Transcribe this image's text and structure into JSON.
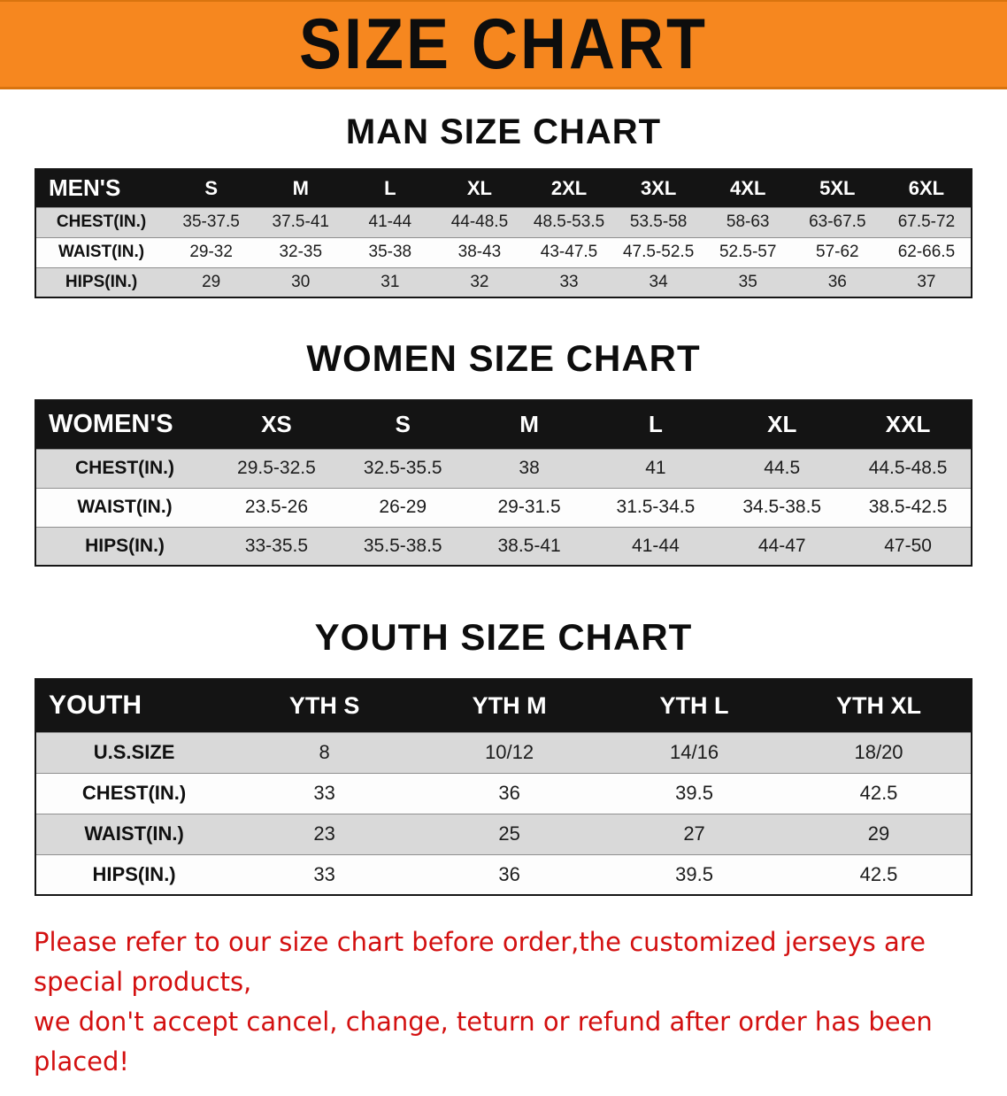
{
  "banner": {
    "title": "SIZE CHART"
  },
  "colors": {
    "banner-bg": "#f6871f",
    "header-bg": "#141414",
    "stripe-gray": "#d9d9d9",
    "footer-red": "#d31010"
  },
  "sections": [
    {
      "heading": "MAN SIZE CHART",
      "table": {
        "header": [
          "MEN'S",
          "S",
          "M",
          "L",
          "XL",
          "2XL",
          "3XL",
          "4XL",
          "5XL",
          "6XL"
        ],
        "rows": [
          [
            "CHEST(IN.)",
            "35-37.5",
            "37.5-41",
            "41-44",
            "44-48.5",
            "48.5-53.5",
            "53.5-58",
            "58-63",
            "63-67.5",
            "67.5-72"
          ],
          [
            "WAIST(IN.)",
            "29-32",
            "32-35",
            "35-38",
            "38-43",
            "43-47.5",
            "47.5-52.5",
            "52.5-57",
            "57-62",
            "62-66.5"
          ],
          [
            "HIPS(IN.)",
            "29",
            "30",
            "31",
            "32",
            "33",
            "34",
            "35",
            "36",
            "37"
          ]
        ]
      }
    },
    {
      "heading": "WOMEN SIZE CHART",
      "table": {
        "header": [
          "WOMEN'S",
          "XS",
          "S",
          "M",
          "L",
          "XL",
          "XXL"
        ],
        "rows": [
          [
            "CHEST(IN.)",
            "29.5-32.5",
            "32.5-35.5",
            "38",
            "41",
            "44.5",
            "44.5-48.5"
          ],
          [
            "WAIST(IN.)",
            "23.5-26",
            "26-29",
            "29-31.5",
            "31.5-34.5",
            "34.5-38.5",
            "38.5-42.5"
          ],
          [
            "HIPS(IN.)",
            "33-35.5",
            "35.5-38.5",
            "38.5-41",
            "41-44",
            "44-47",
            "47-50"
          ]
        ]
      }
    },
    {
      "heading": "YOUTH SIZE CHART",
      "table": {
        "header": [
          "YOUTH",
          "YTH S",
          "YTH M",
          "YTH L",
          "YTH XL"
        ],
        "rows": [
          [
            "U.S.SIZE",
            "8",
            "10/12",
            "14/16",
            "18/20"
          ],
          [
            "CHEST(IN.)",
            "33",
            "36",
            "39.5",
            "42.5"
          ],
          [
            "WAIST(IN.)",
            "23",
            "25",
            "27",
            "29"
          ],
          [
            "HIPS(IN.)",
            "33",
            "36",
            "39.5",
            "42.5"
          ]
        ]
      }
    }
  ],
  "footer": {
    "lines": [
      "Please refer to our size chart before order,the customized jerseys are special products,",
      "we don't accept cancel, change, teturn or refund after order has been placed!"
    ]
  }
}
